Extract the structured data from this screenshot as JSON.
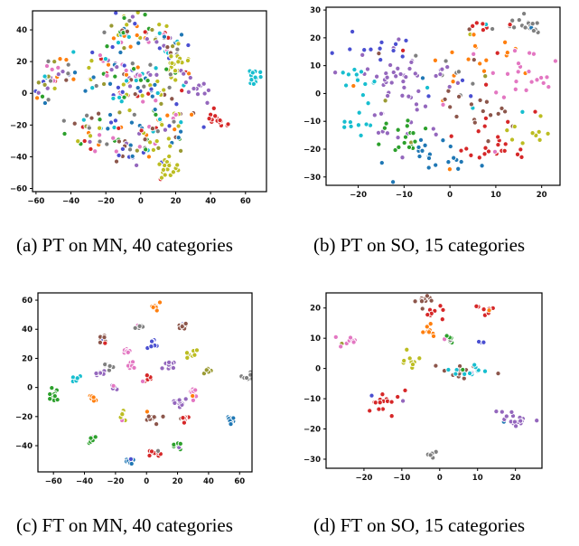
{
  "palette": [
    "#1f77b4",
    "#ff7f0e",
    "#2ca02c",
    "#d62728",
    "#9467bd",
    "#8c564b",
    "#e377c2",
    "#7f7f7f",
    "#bcbd22",
    "#17becf",
    "#4a4fd1",
    "#9a9a33"
  ],
  "chart_data": [
    {
      "id": "a",
      "type": "scatter",
      "caption": "(a) PT on MN, 40 categories",
      "xlim": [
        -62,
        72
      ],
      "ylim": [
        -62,
        52
      ],
      "xticks": [
        -60,
        -40,
        -20,
        0,
        20,
        40,
        60
      ],
      "yticks": [
        -60,
        -40,
        -20,
        0,
        20,
        40
      ],
      "grid": false,
      "n_categories": 40,
      "clusters": [
        {
          "x": -5,
          "y": 38,
          "sx": 7,
          "sy": 6,
          "n": 40,
          "mixed": true
        },
        {
          "x": 15,
          "y": 33,
          "sx": 6,
          "sy": 5,
          "n": 28,
          "mixed": true
        },
        {
          "x": 20,
          "y": 18,
          "sx": 4,
          "sy": 4,
          "n": 20,
          "color": 8
        },
        {
          "x": -20,
          "y": 10,
          "sx": 10,
          "sy": 10,
          "n": 45,
          "mixed": true
        },
        {
          "x": -5,
          "y": 5,
          "sx": 10,
          "sy": 12,
          "n": 50,
          "mixed": true
        },
        {
          "x": 8,
          "y": -5,
          "sx": 7,
          "sy": 10,
          "n": 30,
          "mixed": true
        },
        {
          "x": -50,
          "y": 10,
          "sx": 6,
          "sy": 7,
          "n": 32,
          "mixed": true
        },
        {
          "x": 65,
          "y": 10,
          "sx": 2.5,
          "sy": 3,
          "n": 16,
          "color": 9
        },
        {
          "x": 45,
          "y": -16,
          "sx": 3,
          "sy": 3,
          "n": 16,
          "color": 3
        },
        {
          "x": 20,
          "y": -20,
          "sx": 6,
          "sy": 5,
          "n": 22,
          "mixed": true
        },
        {
          "x": -28,
          "y": -25,
          "sx": 7,
          "sy": 6,
          "n": 30,
          "mixed": true
        },
        {
          "x": 5,
          "y": -30,
          "sx": 8,
          "sy": 6,
          "n": 28,
          "mixed": true
        },
        {
          "x": 15,
          "y": -45,
          "sx": 4,
          "sy": 5,
          "n": 20,
          "color": 8
        },
        {
          "x": 30,
          "y": 5,
          "sx": 5,
          "sy": 5,
          "n": 14,
          "color": 4
        },
        {
          "x": -5,
          "y": -40,
          "sx": 6,
          "sy": 4,
          "n": 16,
          "mixed": true
        }
      ]
    },
    {
      "id": "b",
      "type": "scatter",
      "caption": "(b) PT on SO, 15 categories",
      "xlim": [
        -27,
        24
      ],
      "ylim": [
        -33,
        31
      ],
      "xticks": [
        -20,
        -10,
        0,
        10,
        20
      ],
      "yticks": [
        -30,
        -20,
        -10,
        0,
        10,
        20,
        30
      ],
      "grid": false,
      "n_categories": 15,
      "clusters": [
        {
          "x": 17,
          "y": 25,
          "sx": 2,
          "sy": 2,
          "n": 18,
          "color": 7
        },
        {
          "x": 8,
          "y": 24,
          "sx": 3,
          "sy": 1.5,
          "n": 10,
          "color": 3
        },
        {
          "x": 10,
          "y": 15,
          "sx": 4,
          "sy": 3,
          "n": 14,
          "color": 1
        },
        {
          "x": -12,
          "y": 10,
          "sx": 5,
          "sy": 4,
          "n": 30,
          "color": 4
        },
        {
          "x": -20,
          "y": 5,
          "sx": 3,
          "sy": 5,
          "n": 14,
          "color": 9
        },
        {
          "x": 16,
          "y": 5,
          "sx": 4,
          "sy": 5,
          "n": 24,
          "color": 6
        },
        {
          "x": 2,
          "y": 5,
          "sx": 5,
          "sy": 5,
          "n": 22,
          "mixed": true
        },
        {
          "x": -8,
          "y": -5,
          "sx": 5,
          "sy": 6,
          "n": 26,
          "color": 4
        },
        {
          "x": 5,
          "y": -5,
          "sx": 4,
          "sy": 4,
          "n": 18,
          "color": 5
        },
        {
          "x": 10,
          "y": -18,
          "sx": 5,
          "sy": 5,
          "n": 26,
          "color": 3
        },
        {
          "x": -5,
          "y": -22,
          "sx": 5,
          "sy": 4,
          "n": 24,
          "color": 0
        },
        {
          "x": -10,
          "y": -15,
          "sx": 4,
          "sy": 3,
          "n": 16,
          "color": 2
        },
        {
          "x": -20,
          "y": -10,
          "sx": 3,
          "sy": 3,
          "n": 10,
          "color": 9
        },
        {
          "x": 18,
          "y": -15,
          "sx": 2,
          "sy": 3,
          "n": 10,
          "color": 8
        },
        {
          "x": -15,
          "y": 18,
          "sx": 4,
          "sy": 3,
          "n": 12,
          "color": 10
        }
      ]
    },
    {
      "id": "c",
      "type": "scatter",
      "caption": "(c) FT on MN, 40 categories",
      "xlim": [
        -70,
        68
      ],
      "ylim": [
        -58,
        65
      ],
      "xticks": [
        -60,
        -40,
        -20,
        0,
        20,
        40,
        60
      ],
      "yticks": [
        -40,
        -20,
        0,
        20,
        40,
        60
      ],
      "grid": false,
      "n_categories": 40,
      "clusters": [
        {
          "x": 5,
          "y": 55,
          "sx": 1.5,
          "sy": 1.5,
          "n": 9,
          "color": 1
        },
        {
          "x": -5,
          "y": 42,
          "sx": 1.8,
          "sy": 1.3,
          "n": 9,
          "color": 7
        },
        {
          "x": 25,
          "y": 42,
          "sx": 1.8,
          "sy": 1.3,
          "n": 9,
          "color": 5
        },
        {
          "x": -28,
          "y": 32,
          "sx": 1.5,
          "sy": 1.8,
          "n": 9,
          "color": 5
        },
        {
          "x": -12,
          "y": 25,
          "sx": 1.5,
          "sy": 1.3,
          "n": 8,
          "color": 6
        },
        {
          "x": 30,
          "y": 23,
          "sx": 1.5,
          "sy": 1.3,
          "n": 8,
          "color": 8
        },
        {
          "x": 65,
          "y": 8,
          "sx": 2.5,
          "sy": 1.3,
          "n": 10,
          "color": 7
        },
        {
          "x": -30,
          "y": 10,
          "sx": 2,
          "sy": 1.5,
          "n": 8,
          "color": 4
        },
        {
          "x": -10,
          "y": 15,
          "sx": 1.5,
          "sy": 1.5,
          "n": 8,
          "color": 6
        },
        {
          "x": 15,
          "y": 15,
          "sx": 2,
          "sy": 2,
          "n": 10,
          "color": 4
        },
        {
          "x": -20,
          "y": 0,
          "sx": 1.5,
          "sy": 1.5,
          "n": 8,
          "color": 4
        },
        {
          "x": 0,
          "y": 5,
          "sx": 1.5,
          "sy": 1.5,
          "n": 8,
          "color": 3
        },
        {
          "x": 30,
          "y": -5,
          "sx": 2,
          "sy": 2,
          "n": 10,
          "color": 6
        },
        {
          "x": -60,
          "y": -5,
          "sx": 1.5,
          "sy": 2,
          "n": 10,
          "color": 2
        },
        {
          "x": -35,
          "y": -8,
          "sx": 1.5,
          "sy": 1.5,
          "n": 8,
          "color": 1
        },
        {
          "x": 20,
          "y": -10,
          "sx": 2,
          "sy": 2,
          "n": 12,
          "color": 4
        },
        {
          "x": -15,
          "y": -20,
          "sx": 1.5,
          "sy": 2,
          "n": 9,
          "color": 8
        },
        {
          "x": 5,
          "y": -20,
          "sx": 2,
          "sy": 2,
          "n": 10,
          "color": 5
        },
        {
          "x": 25,
          "y": -22,
          "sx": 1.8,
          "sy": 1.5,
          "n": 8,
          "color": 3
        },
        {
          "x": 55,
          "y": -22,
          "sx": 1.5,
          "sy": 2,
          "n": 10,
          "color": 0
        },
        {
          "x": -35,
          "y": -35,
          "sx": 1.5,
          "sy": 2,
          "n": 9,
          "color": 2
        },
        {
          "x": 20,
          "y": -40,
          "sx": 2,
          "sy": 1.5,
          "n": 9,
          "color": 2
        },
        {
          "x": 5,
          "y": -45,
          "sx": 2,
          "sy": 1.5,
          "n": 10,
          "color": 3
        },
        {
          "x": -10,
          "y": -50,
          "sx": 1.5,
          "sy": 1.5,
          "n": 9,
          "color": 0
        },
        {
          "x": -25,
          "y": 15,
          "sx": 1.5,
          "sy": 1.5,
          "n": 8,
          "color": 7
        },
        {
          "x": 5,
          "y": 30,
          "sx": 1.5,
          "sy": 1.5,
          "n": 7,
          "color": 10
        },
        {
          "x": 40,
          "y": 10,
          "sx": 1.5,
          "sy": 1.5,
          "n": 6,
          "color": 11
        },
        {
          "x": -45,
          "y": 5,
          "sx": 1.5,
          "sy": 1.5,
          "n": 6,
          "color": 9
        }
      ]
    },
    {
      "id": "d",
      "type": "scatter",
      "caption": "(d) FT on SO, 15 categories",
      "xlim": [
        -30,
        27
      ],
      "ylim": [
        -33,
        25
      ],
      "xticks": [
        -20,
        -10,
        0,
        10,
        20
      ],
      "yticks": [
        -30,
        -20,
        -10,
        0,
        10,
        20
      ],
      "grid": false,
      "n_categories": 15,
      "clusters": [
        {
          "x": -4,
          "y": 23,
          "sx": 1.2,
          "sy": 1.2,
          "n": 10,
          "color": 5
        },
        {
          "x": -1,
          "y": 19,
          "sx": 1.2,
          "sy": 1.2,
          "n": 8,
          "color": 3
        },
        {
          "x": 12,
          "y": 19,
          "sx": 1.5,
          "sy": 1.2,
          "n": 10,
          "color": 3
        },
        {
          "x": -25,
          "y": 9,
          "sx": 2,
          "sy": 1,
          "n": 10,
          "color": 6
        },
        {
          "x": -3,
          "y": 12,
          "sx": 1.2,
          "sy": 1.2,
          "n": 8,
          "color": 1
        },
        {
          "x": 2,
          "y": 10,
          "sx": 1.2,
          "sy": 1.2,
          "n": 8,
          "color": 2
        },
        {
          "x": -8,
          "y": 3,
          "sx": 1.5,
          "sy": 1.5,
          "n": 10,
          "color": 8
        },
        {
          "x": 6,
          "y": -1,
          "sx": 3.5,
          "sy": 1.2,
          "n": 16,
          "color": 5
        },
        {
          "x": 9,
          "y": -1,
          "sx": 2.5,
          "sy": 1,
          "n": 14,
          "color": 9
        },
        {
          "x": -15,
          "y": -11,
          "sx": 2,
          "sy": 2,
          "n": 18,
          "color": 3
        },
        {
          "x": 20,
          "y": -17,
          "sx": 3,
          "sy": 1.5,
          "n": 18,
          "color": 4
        },
        {
          "x": -3,
          "y": -28,
          "sx": 1.2,
          "sy": 1,
          "n": 8,
          "color": 7
        },
        {
          "x": 11,
          "y": 9,
          "sx": 0.8,
          "sy": 0.8,
          "n": 3,
          "color": 10
        }
      ]
    }
  ]
}
